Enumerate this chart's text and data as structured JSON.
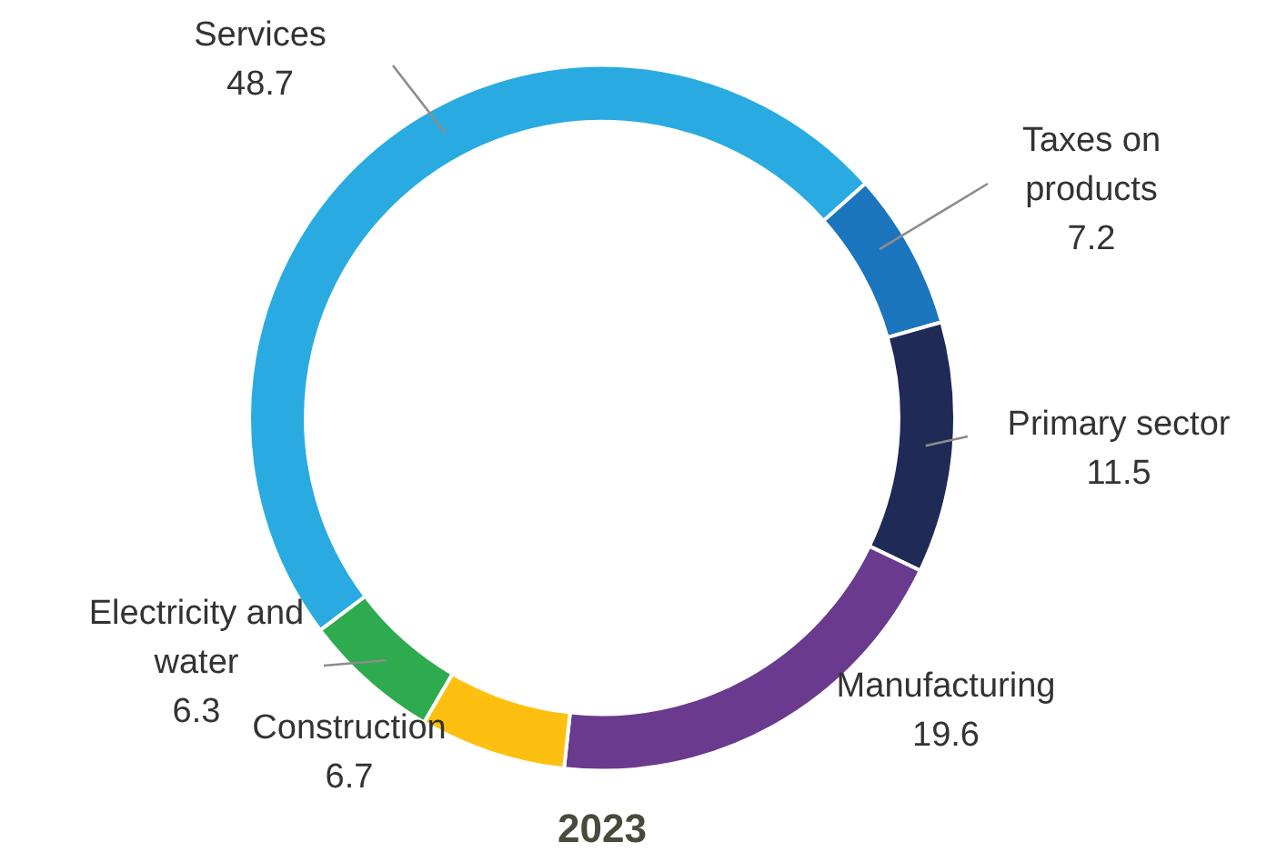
{
  "chart_data": {
    "type": "donut",
    "title": "2023",
    "categories": [
      "Services",
      "Taxes on products",
      "Primary sector",
      "Manufacturing",
      "Construction",
      "Electricity and water"
    ],
    "values": [
      48.7,
      7.2,
      11.5,
      19.6,
      6.7,
      6.3
    ],
    "colors": [
      "#29abe2",
      "#1b75bc",
      "#1f2a56",
      "#6a3a8e",
      "#fdc010",
      "#2eaa4f"
    ],
    "data_labels": true,
    "legend": false
  }
}
